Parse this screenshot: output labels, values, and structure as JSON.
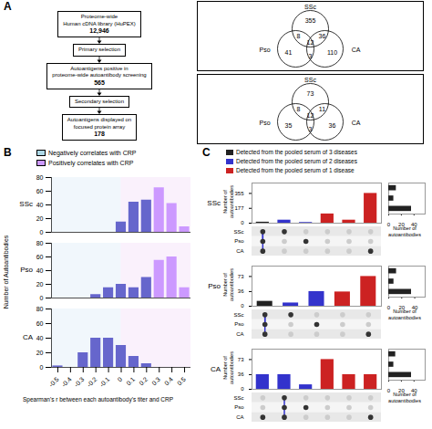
{
  "chart_data": [
    {
      "type": "flowchart",
      "panel": "A",
      "boxes": [
        {
          "text": "Proteome-wide\nHuman cDNA library (HuPEX)",
          "count": {
            "value": 12946,
            "label": "12,946"
          }
        },
        {
          "text": "Primary selection"
        },
        {
          "text": "Autoantigens positive in\nproteome-wide autoantibody screening",
          "count": 565
        },
        {
          "text": "Secondary selection"
        },
        {
          "text": "Autoantigens displayed on\nfocused protein array",
          "count": 178
        }
      ]
    },
    {
      "type": "venn",
      "title": "SSc",
      "labels": [
        "Pso",
        "CA"
      ],
      "values": {
        "SSc_only": 355,
        "Pso_only": 41,
        "CA_only": 110,
        "SSc_Pso": 8,
        "SSc_CA": 36,
        "Pso_CA": 3,
        "all": 12
      }
    },
    {
      "type": "venn",
      "title": "SSc",
      "labels": [
        "Pso",
        "CA"
      ],
      "values": {
        "SSc_only": 73,
        "Pso_only": 35,
        "CA_only": 36,
        "SSc_Pso": 8,
        "SSc_CA": 11,
        "Pso_CA": 3,
        "all": 12
      }
    },
    {
      "type": "bar",
      "panel": "B",
      "legend_items": [
        {
          "name": "Negatively correlates with CRP",
          "color": "#add8e6"
        },
        {
          "name": "Positively correlates with CRP",
          "color": "#cc99ff"
        }
      ],
      "xlabel": "Spearman's r between each autoantibody's titer and CRP",
      "ylabel": "Number of Autoantibodies",
      "xlim": [
        -0.55,
        0.55
      ],
      "xticks": [
        -0.5,
        -0.4,
        -0.3,
        -0.2,
        -0.1,
        0,
        0.1,
        0.2,
        0.3,
        0.4,
        0.5
      ],
      "ylim": [
        0,
        80
      ],
      "yticks": [
        0,
        20,
        40,
        60,
        80
      ],
      "regions": [
        {
          "from": -0.55,
          "to": 0,
          "color": "#d6e8f5"
        },
        {
          "from": 0,
          "to": 0.55,
          "color": "#f0d6f5"
        }
      ],
      "subplots": [
        {
          "title": "SSc",
          "tick_labels": "y",
          "x": [
            -0.5,
            -0.4,
            -0.3,
            -0.2,
            -0.1,
            0,
            0.1,
            0.2,
            0.3,
            0.4,
            0.5
          ],
          "values": [
            0,
            0,
            0,
            0,
            0,
            15,
            44,
            47,
            65,
            42,
            8
          ],
          "colors": [
            "#6666cc",
            "#6666cc",
            "#6666cc",
            "#6666cc",
            "#6666cc",
            "#6666cc",
            "#6666cc",
            "#6666cc",
            "#cc99ff",
            "#cc99ff",
            "#cc99ff"
          ]
        },
        {
          "title": "Pso",
          "tick_labels": "y",
          "x": [
            -0.5,
            -0.4,
            -0.3,
            -0.2,
            -0.1,
            0,
            0.1,
            0.2,
            0.3,
            0.4,
            0.5
          ],
          "values": [
            0,
            0,
            0,
            5,
            15,
            20,
            15,
            30,
            55,
            60,
            15
          ],
          "colors": [
            "#6666cc",
            "#6666cc",
            "#6666cc",
            "#6666cc",
            "#6666cc",
            "#6666cc",
            "#6666cc",
            "#6666cc",
            "#cc99ff",
            "#cc99ff",
            "#cc99ff"
          ]
        },
        {
          "title": "CA",
          "x": [
            -0.5,
            -0.4,
            -0.3,
            -0.2,
            -0.1,
            0,
            0.1,
            0.2,
            0.3,
            0.4,
            0.5
          ],
          "values": [
            2,
            0,
            20,
            40,
            40,
            30,
            15,
            5,
            0,
            0,
            0
          ],
          "colors": [
            "#6666cc",
            "#6666cc",
            "#6666cc",
            "#6666cc",
            "#6666cc",
            "#6666cc",
            "#6666cc",
            "#6666cc",
            "#cc99ff",
            "#cc99ff",
            "#cc99ff"
          ]
        }
      ]
    },
    {
      "type": "upset",
      "panel": "C",
      "legend_items": [
        {
          "name": "Detected from the pooled serum of 3 diseases",
          "color": "#222222"
        },
        {
          "name": "Detected from the pooled serum of 2 diseases",
          "color": "#3333cc"
        },
        {
          "name": "Detected from the pooled serum of 1 disease",
          "color": "#cc2222"
        }
      ],
      "rows": [
        "SSc",
        "Pso",
        "CA"
      ],
      "ylabel": "Number of\nautoantibodies",
      "xlabel": "Number of\nautoantibodies",
      "dot_color": "#333333",
      "empty_color": "#cccccc",
      "connection_color": "#3333cc",
      "side_color": "#222222",
      "subplots": [
        {
          "title": "SSc",
          "values": [
            12,
            36,
            8,
            110,
            36,
            355
          ],
          "colors": [
            "#222222",
            "#3333cc",
            "#3333cc",
            "#cc2222",
            "#cc2222",
            "#cc2222"
          ],
          "ylim": [
            0,
            479.25
          ],
          "yticks": [
            0,
            177,
            355
          ],
          "matrix": [
            [
              1,
              1,
              0,
              0,
              0,
              0
            ],
            [
              1,
              0,
              1,
              0,
              0,
              0
            ],
            [
              1,
              0,
              0,
              0,
              0,
              1
            ]
          ],
          "connections": [
            [
              0,
              1
            ],
            [
              0,
              2
            ]
          ],
          "side_values": [
            12,
            8,
            36
          ],
          "side_xlim": [
            0,
            57.6
          ],
          "side_xticks": [
            0,
            20,
            40
          ]
        },
        {
          "title": "Pso",
          "values": [
            12,
            8,
            36,
            35,
            73
          ],
          "colors": [
            "#222222",
            "#3333cc",
            "#3333cc",
            "#cc2222",
            "#cc2222"
          ],
          "ylim": [
            0,
            98.55
          ],
          "yticks": [
            0,
            36,
            73
          ],
          "matrix": [
            [
              1,
              1,
              0,
              0,
              0
            ],
            [
              1,
              0,
              1,
              0,
              0
            ],
            [
              1,
              0,
              0,
              0,
              1
            ]
          ],
          "connections": [
            [
              0,
              1
            ],
            [
              0,
              2
            ]
          ],
          "side_values": [
            12,
            8,
            35
          ],
          "side_xlim": [
            0,
            56
          ],
          "side_xticks": [
            0,
            20,
            40
          ]
        },
        {
          "title": "CA",
          "values": [
            36,
            36,
            11,
            73,
            36,
            36
          ],
          "colors": [
            "#3333cc",
            "#3333cc",
            "#3333cc",
            "#cc2222",
            "#cc2222",
            "#cc2222"
          ],
          "ylim": [
            0,
            98.55
          ],
          "yticks": [
            0,
            36,
            73
          ],
          "matrix": [
            [
              0,
              1,
              0,
              0,
              0,
              0
            ],
            [
              0,
              1,
              1,
              0,
              0,
              0
            ],
            [
              1,
              1,
              0,
              0,
              0,
              1
            ]
          ],
          "connections": [
            [
              0,
              1
            ],
            [
              1,
              2
            ]
          ],
          "side_values": [
            11,
            8,
            36
          ],
          "side_xlim": [
            0,
            57.6
          ],
          "side_xticks": [
            0,
            20,
            40
          ]
        }
      ]
    }
  ]
}
